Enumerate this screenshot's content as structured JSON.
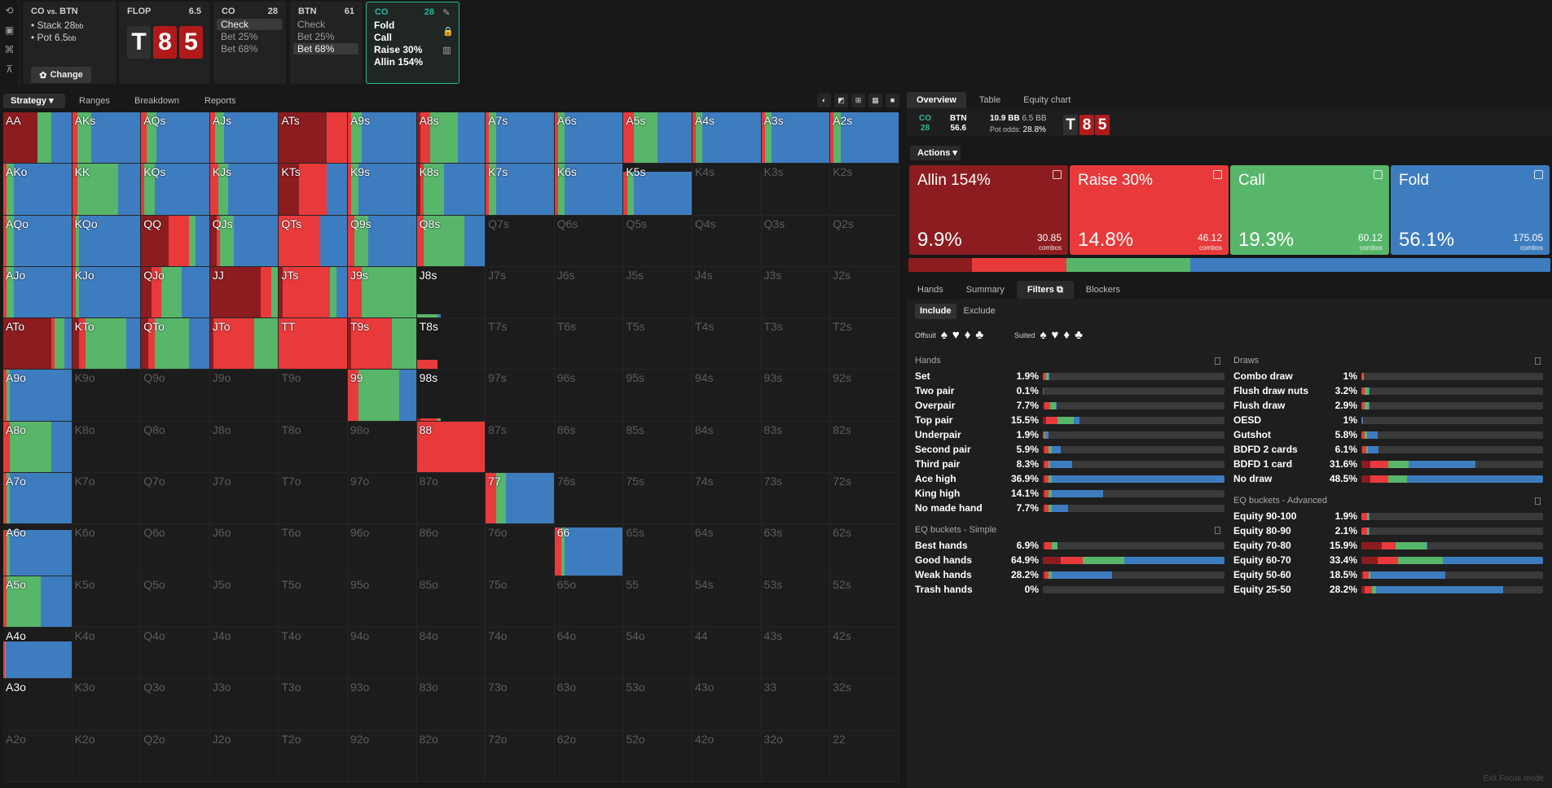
{
  "colors": {
    "allin": "#8c1c1f",
    "raise": "#e83a3b",
    "call": "#57b66a",
    "fold": "#3e7cc0",
    "accent": "#2bb89b",
    "card_dark": "#303030",
    "card_red": "#b01a1a"
  },
  "toolbar_icons": [
    "refresh-icon",
    "save-icon",
    "gamepad-icon",
    "tree-icon"
  ],
  "info": {
    "title": "CO",
    "title_vs": "vs.",
    "title2": "BTN",
    "stack_label": "Stack 28",
    "stack_unit": "bb",
    "pot_label": "Pot 6.5",
    "pot_unit": "bb",
    "change_label": "Change"
  },
  "flop": {
    "title": "FLOP",
    "num": "6.5",
    "cards": [
      "T",
      "8",
      "5"
    ]
  },
  "co": {
    "title": "CO",
    "num": "28",
    "options": [
      "Check",
      "Bet 25%",
      "Bet 68%"
    ],
    "selected": 0
  },
  "btn": {
    "title": "BTN",
    "num": "61",
    "options": [
      "Check",
      "Bet 25%",
      "Bet 68%"
    ],
    "selected": 2
  },
  "co2": {
    "title": "CO",
    "num": "28",
    "options": [
      "Fold",
      "Call",
      "Raise 30%",
      "Allin 154%"
    ]
  },
  "left_tabs": [
    "Strategy",
    "Ranges",
    "Breakdown",
    "Reports"
  ],
  "grid": {
    "labels": [
      [
        "AA",
        "AKs",
        "AQs",
        "AJs",
        "ATs",
        "A9s",
        "A8s",
        "A7s",
        "A6s",
        "A5s",
        "A4s",
        "A3s",
        "A2s"
      ],
      [
        "AKo",
        "KK",
        "KQs",
        "KJs",
        "KTs",
        "K9s",
        "K8s",
        "K7s",
        "K6s",
        "K5s",
        "K4s",
        "K3s",
        "K2s"
      ],
      [
        "AQo",
        "KQo",
        "QQ",
        "QJs",
        "QTs",
        "Q9s",
        "Q8s",
        "Q7s",
        "Q6s",
        "Q5s",
        "Q4s",
        "Q3s",
        "Q2s"
      ],
      [
        "AJo",
        "KJo",
        "QJo",
        "JJ",
        "JTs",
        "J9s",
        "J8s",
        "J7s",
        "J6s",
        "J5s",
        "J4s",
        "J3s",
        "J2s"
      ],
      [
        "ATo",
        "KTo",
        "QTo",
        "JTo",
        "TT",
        "T9s",
        "T8s",
        "T7s",
        "T6s",
        "T5s",
        "T4s",
        "T3s",
        "T2s"
      ],
      [
        "A9o",
        "K9o",
        "Q9o",
        "J9o",
        "T9o",
        "99",
        "98s",
        "97s",
        "96s",
        "95s",
        "94s",
        "93s",
        "92s"
      ],
      [
        "A8o",
        "K8o",
        "Q8o",
        "J8o",
        "T8o",
        "98o",
        "88",
        "87s",
        "86s",
        "85s",
        "84s",
        "83s",
        "82s"
      ],
      [
        "A7o",
        "K7o",
        "Q7o",
        "J7o",
        "T7o",
        "97o",
        "87o",
        "77",
        "76s",
        "75s",
        "74s",
        "73s",
        "72s"
      ],
      [
        "A6o",
        "K6o",
        "Q6o",
        "J6o",
        "T6o",
        "96o",
        "86o",
        "76o",
        "66",
        "65s",
        "64s",
        "63s",
        "62s"
      ],
      [
        "A5o",
        "K5o",
        "Q5o",
        "J5o",
        "T5o",
        "95o",
        "85o",
        "75o",
        "65o",
        "55",
        "54s",
        "53s",
        "52s"
      ],
      [
        "A4o",
        "K4o",
        "Q4o",
        "J4o",
        "T4o",
        "94o",
        "84o",
        "74o",
        "64o",
        "54o",
        "44",
        "43s",
        "42s"
      ],
      [
        "A3o",
        "K3o",
        "Q3o",
        "J3o",
        "T3o",
        "93o",
        "83o",
        "73o",
        "63o",
        "53o",
        "43o",
        "33",
        "32s"
      ],
      [
        "A2o",
        "K2o",
        "Q2o",
        "J2o",
        "T2o",
        "92o",
        "82o",
        "72o",
        "62o",
        "52o",
        "42o",
        "32o",
        "22"
      ]
    ],
    "mixes": {
      "AA": [
        1,
        0,
        0.4,
        0.59
      ],
      "AKs": [
        0,
        0.08,
        0.2,
        0.72
      ],
      "AQs": [
        0,
        0.08,
        0.15,
        0.77
      ],
      "AJs": [
        0,
        0.08,
        0.12,
        0.8
      ],
      "ATs": [
        0.7,
        0.3,
        0,
        0
      ],
      "A9s": [
        0,
        0.05,
        0.15,
        0.8
      ],
      "A8s": [
        0.05,
        0.15,
        0.4,
        0.4
      ],
      "A7s": [
        0,
        0.05,
        0.1,
        0.85
      ],
      "A6s": [
        0,
        0.05,
        0.1,
        0.85
      ],
      "A5s": [
        0,
        0.15,
        0.35,
        0.5
      ],
      "A4s": [
        0,
        0.05,
        0.1,
        0.85
      ],
      "A3s": [
        0,
        0.05,
        0.1,
        0.85
      ],
      "A2s": [
        0,
        0.05,
        0.1,
        0.85
      ],
      "AKo": [
        0,
        0.05,
        0.1,
        0.85
      ],
      "KK": [
        0,
        0.08,
        0.6,
        0.32
      ],
      "KQs": [
        0,
        0.05,
        0.15,
        0.8
      ],
      "KJs": [
        0,
        0.12,
        0.15,
        0.73
      ],
      "KTs": [
        0.3,
        0.4,
        0,
        0.3
      ],
      "K9s": [
        0,
        0.05,
        0.1,
        0.85
      ],
      "K8s": [
        0.05,
        0.05,
        0.3,
        0.6
      ],
      "K7s": [
        0,
        0.05,
        0.1,
        0.85
      ],
      "K6s": [
        0,
        0.05,
        0.1,
        0.85
      ],
      "K5s": [
        0,
        0.05,
        0.1,
        0.85
      ],
      "AQo": [
        0,
        0.05,
        0.1,
        0.85
      ],
      "KQo": [
        0,
        0.05,
        0.05,
        0.9
      ],
      "QQ": [
        0.4,
        0.3,
        0.1,
        0.2
      ],
      "QJs": [
        0.1,
        0.05,
        0.2,
        0.65
      ],
      "QTs": [
        0,
        0.6,
        0,
        0.4
      ],
      "Q9s": [
        0,
        0.1,
        0.2,
        0.7
      ],
      "Q8s": [
        0,
        0.1,
        0.6,
        0.3
      ],
      "AJo": [
        0,
        0.05,
        0.1,
        0.85
      ],
      "KJo": [
        0,
        0.05,
        0.05,
        0.9
      ],
      "QJo": [
        0.15,
        0.15,
        0.3,
        0.4
      ],
      "JJ": [
        0.75,
        0.15,
        0.1,
        0
      ],
      "JTs": [
        0.05,
        0.7,
        0.1,
        0.15
      ],
      "J9s": [
        0,
        0.2,
        0.8,
        0
      ],
      "J8s": [
        0,
        0,
        0.3,
        0.05
      ],
      "ATo": [
        0.7,
        0.05,
        0.15,
        0.1
      ],
      "KTo": [
        0.1,
        0.1,
        0.6,
        0.2
      ],
      "QTo": [
        0.1,
        0.1,
        0.5,
        0.3
      ],
      "JTo": [
        0.05,
        0.6,
        0.35,
        0
      ],
      "TT": [
        0,
        1,
        0,
        0
      ],
      "T9s": [
        0.05,
        0.6,
        0.35,
        0
      ],
      "T8s": [
        0,
        0.3,
        0,
        0
      ],
      "A9o": [
        0,
        0.05,
        0.05,
        0.9
      ],
      "99": [
        0,
        0.15,
        0.6,
        0.25
      ],
      "98s": [
        0.05,
        0.25,
        0.05,
        0
      ],
      "A8o": [
        0,
        0.1,
        0.6,
        0.3
      ],
      "88": [
        0,
        1,
        0,
        0
      ],
      "A7o": [
        0,
        0.05,
        0.05,
        0.9
      ],
      "77": [
        0,
        0.15,
        0.15,
        0.7
      ],
      "A6o": [
        0,
        0.05,
        0.05,
        0.9
      ],
      "66": [
        0,
        0.1,
        0.05,
        0.85
      ],
      "A5o": [
        0,
        0.05,
        0.5,
        0.45
      ],
      "A4o": [
        0,
        0.02,
        0.02,
        0.96
      ],
      "A3o": [
        0,
        0,
        0,
        0
      ]
    },
    "heights": {
      "AA": 1,
      "J8s": 0.06,
      "T8s": 0.19,
      "98s": 0.04,
      "A4o": 0.73,
      "A3o": 0,
      "K5s": 0.85,
      "Q8s": 1,
      "A6o": 0.9,
      "A5o": 1,
      "66": 0.95,
      "77": 1,
      "88": 1
    }
  },
  "right_tabs": [
    "Overview",
    "Table",
    "Equity chart"
  ],
  "overview": {
    "co_label": "CO",
    "co_val": "28",
    "btn_label": "BTN",
    "btn_val": "56.6",
    "pot_bb": "10.9 BB",
    "pot_bb2": "6.5 BB",
    "pot_odds_label": "Pot odds:",
    "pot_odds": "28.8%",
    "cards": [
      "T",
      "8",
      "5"
    ]
  },
  "actions_label": "Actions",
  "actions": [
    {
      "name": "Allin 154%",
      "pct": "9.9%",
      "combos": "30.85",
      "combos_label": "combos",
      "key": "allin",
      "share": 9.9
    },
    {
      "name": "Raise 30%",
      "pct": "14.8%",
      "combos": "46.12",
      "combos_label": "combos",
      "key": "raise",
      "share": 14.8
    },
    {
      "name": "Call",
      "pct": "19.3%",
      "combos": "60.12",
      "combos_label": "combos",
      "key": "call",
      "share": 19.3
    },
    {
      "name": "Fold",
      "pct": "56.1%",
      "combos": "175.05",
      "combos_label": "combos",
      "key": "fold",
      "share": 56.1
    }
  ],
  "sub_tabs": [
    "Hands",
    "Summary",
    "Filters",
    "Blockers"
  ],
  "include_tabs": [
    "Include",
    "Exclude"
  ],
  "offsuit_label": "Offsuit",
  "suited_label": "Suited",
  "suits": [
    "♠",
    "♥",
    "♦",
    "♣"
  ],
  "filters": {
    "hands_title": "Hands",
    "hands": [
      {
        "n": "Set",
        "p": "1.9%",
        "m": [
          0,
          0.02,
          0.01,
          0.005
        ]
      },
      {
        "n": "Two pair",
        "p": "0.1%",
        "m": [
          0,
          0.002,
          0,
          0
        ]
      },
      {
        "n": "Overpair",
        "p": "7.7%",
        "m": [
          0.01,
          0.03,
          0.03,
          0.007
        ]
      },
      {
        "n": "Top pair",
        "p": "15.5%",
        "m": [
          0.02,
          0.06,
          0.09,
          0.03
        ]
      },
      {
        "n": "Underpair",
        "p": "1.9%",
        "m": [
          0,
          0.01,
          0.005,
          0.015
        ]
      },
      {
        "n": "Second pair",
        "p": "5.9%",
        "m": [
          0.01,
          0.02,
          0.02,
          0.05
        ]
      },
      {
        "n": "Third pair",
        "p": "8.3%",
        "m": [
          0.01,
          0.02,
          0.01,
          0.12
        ]
      },
      {
        "n": "Ace high",
        "p": "36.9%",
        "m": [
          0.01,
          0.02,
          0.02,
          0.95
        ]
      },
      {
        "n": "King high",
        "p": "14.1%",
        "m": [
          0.01,
          0.02,
          0.02,
          0.28
        ]
      },
      {
        "n": "No made hand",
        "p": "7.7%",
        "m": [
          0.01,
          0.02,
          0.02,
          0.09
        ]
      }
    ],
    "eq_simple_title": "EQ buckets - Simple",
    "eq_simple": [
      {
        "n": "Best hands",
        "p": "6.9%",
        "m": [
          0.01,
          0.04,
          0.03,
          0
        ]
      },
      {
        "n": "Good hands",
        "p": "64.9%",
        "m": [
          0.1,
          0.12,
          0.23,
          0.55
        ]
      },
      {
        "n": "Weak hands",
        "p": "28.2%",
        "m": [
          0.01,
          0.02,
          0.02,
          0.33
        ]
      },
      {
        "n": "Trash hands",
        "p": "0%",
        "m": [
          0,
          0,
          0,
          0
        ]
      }
    ],
    "draws_title": "Draws",
    "draws": [
      {
        "n": "Combo draw",
        "p": "1%",
        "m": [
          0,
          0.01,
          0.005,
          0
        ]
      },
      {
        "n": "Flush draw nuts",
        "p": "3.2%",
        "m": [
          0,
          0.02,
          0.02,
          0.005
        ]
      },
      {
        "n": "Flush draw",
        "p": "2.9%",
        "m": [
          0,
          0.02,
          0.02,
          0.005
        ]
      },
      {
        "n": "OESD",
        "p": "1%",
        "m": [
          0,
          0.005,
          0,
          0.005
        ]
      },
      {
        "n": "Gutshot",
        "p": "5.8%",
        "m": [
          0,
          0.02,
          0.01,
          0.06
        ]
      },
      {
        "n": "BDFD 2 cards",
        "p": "6.1%",
        "m": [
          0.005,
          0.02,
          0.01,
          0.06
        ]
      },
      {
        "n": "BDFD 1 card",
        "p": "31.6%",
        "m": [
          0.05,
          0.1,
          0.11,
          0.37
        ]
      },
      {
        "n": "No draw",
        "p": "48.5%",
        "m": [
          0.05,
          0.1,
          0.1,
          0.75
        ]
      }
    ],
    "eq_adv_title": "EQ buckets - Advanced",
    "eq_adv": [
      {
        "n": "Equity 90-100",
        "p": "1.9%",
        "m": [
          0,
          0.03,
          0.01,
          0.005
        ]
      },
      {
        "n": "Equity 80-90",
        "p": "2.1%",
        "m": [
          0,
          0.03,
          0.01,
          0.005
        ]
      },
      {
        "n": "Equity 70-80",
        "p": "15.9%",
        "m": [
          0.11,
          0.08,
          0.17,
          0.005
        ]
      },
      {
        "n": "Equity 60-70",
        "p": "33.4%",
        "m": [
          0.09,
          0.11,
          0.25,
          0.55
        ]
      },
      {
        "n": "Equity 50-60",
        "p": "18.5%",
        "m": [
          0.01,
          0.03,
          0.01,
          0.41
        ]
      },
      {
        "n": "Equity 25-50",
        "p": "28.2%",
        "m": [
          0.02,
          0.04,
          0.02,
          0.7
        ]
      }
    ]
  },
  "exit_focus": "Exit Focus mode"
}
